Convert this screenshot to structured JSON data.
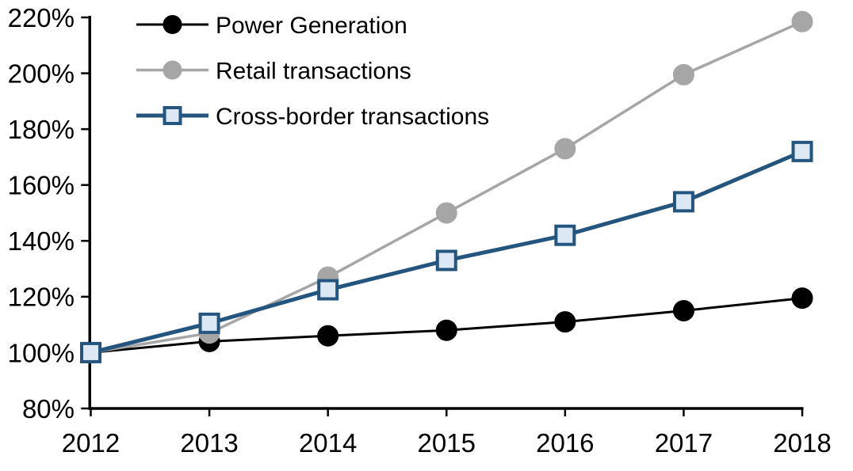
{
  "page": {
    "background_color": "#ffffff",
    "text_color": "#000000",
    "axis_color": "#000000"
  },
  "chart_data": {
    "type": "line",
    "title": "",
    "xlabel": "",
    "ylabel": "",
    "x_categories": [
      "2012",
      "2013",
      "2014",
      "2015",
      "2016",
      "2017",
      "2018"
    ],
    "ylim": [
      80,
      220
    ],
    "ytick_step": 20,
    "ytick_labels": [
      "80%",
      "100%",
      "120%",
      "140%",
      "160%",
      "180%",
      "200%",
      "220%"
    ],
    "grid": false,
    "legend_position": "top-left-inside",
    "legend_entries": [
      "Power Generation",
      "Retail transactions",
      "Cross-border transactions"
    ],
    "series": [
      {
        "name": "Power Generation",
        "color": "#000000",
        "marker": "circle",
        "marker_fill": "#000000",
        "marker_stroke": "#000000",
        "line_width": 3,
        "values": [
          100,
          104,
          106,
          108,
          111,
          115,
          119.5
        ]
      },
      {
        "name": "Retail transactions",
        "color": "#a6a6a6",
        "marker": "circle",
        "marker_fill": "#a6a6a6",
        "marker_stroke": "#a6a6a6",
        "line_width": 3.5,
        "values": [
          100,
          107,
          127,
          150,
          173,
          199.5,
          218.5
        ]
      },
      {
        "name": "Cross-border transactions",
        "color": "#24557e",
        "marker": "square",
        "marker_fill": "#dce8f4",
        "marker_stroke": "#24557e",
        "line_width": 5,
        "values": [
          100,
          110.5,
          122.5,
          133,
          142,
          154,
          172
        ]
      }
    ]
  }
}
